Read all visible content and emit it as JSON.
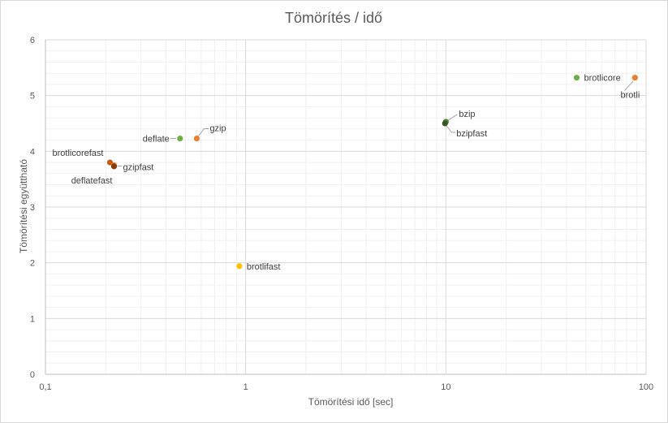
{
  "chart_data": {
    "type": "scatter",
    "title": "Tömörítés / idő",
    "xlabel": "Tömörítési idő [sec]",
    "ylabel": "Tömörítési együttható",
    "xscale": "log",
    "xlim": [
      0.1,
      100
    ],
    "ylim": [
      0,
      6
    ],
    "x_ticks": [
      "0,1",
      "1",
      "10",
      "100"
    ],
    "y_ticks": [
      "0",
      "1",
      "2",
      "3",
      "4",
      "5",
      "6"
    ],
    "grid": true,
    "legend": "none",
    "points": [
      {
        "label": "brotlicore",
        "x": 45,
        "y": 5.32,
        "color": "#70ad47"
      },
      {
        "label": "brotli",
        "x": 88,
        "y": 5.32,
        "color": "#ed7d31"
      },
      {
        "label": "bzip",
        "x": 10.0,
        "y": 4.53,
        "color": "#548235"
      },
      {
        "label": "bzipfast",
        "x": 9.9,
        "y": 4.5,
        "color": "#375623"
      },
      {
        "label": "deflate",
        "x": 0.47,
        "y": 4.23,
        "color": "#70ad47"
      },
      {
        "label": "gzip",
        "x": 0.57,
        "y": 4.23,
        "color": "#ed7d31"
      },
      {
        "label": "brotlicorefast",
        "x": 0.21,
        "y": 3.8,
        "color": "#c55a11"
      },
      {
        "label": "gzipfast",
        "x": 0.22,
        "y": 3.75,
        "color": "#ed7d31"
      },
      {
        "label": "deflatefast",
        "x": 0.22,
        "y": 3.73,
        "color": "#843c0c"
      },
      {
        "label": "brotlifast",
        "x": 0.93,
        "y": 1.94,
        "color": "#ffc000"
      }
    ]
  }
}
